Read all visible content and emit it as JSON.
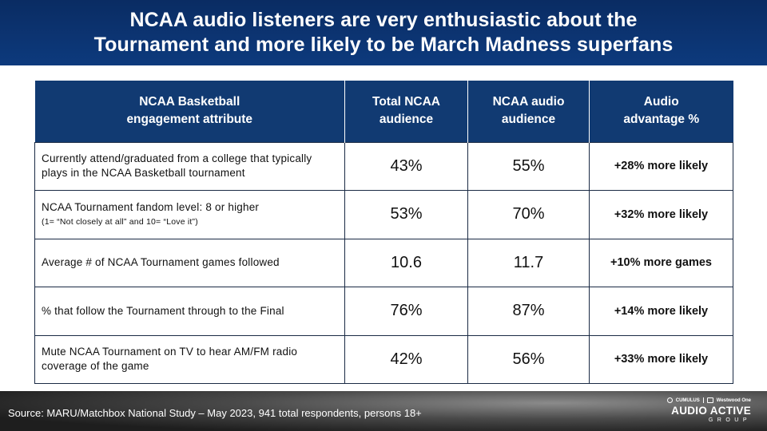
{
  "header": {
    "title": "NCAA audio listeners are very enthusiastic about the\nTournament and more likely to be March Madness superfans"
  },
  "table": {
    "headers": [
      "NCAA Basketball\nengagement attribute",
      "Total NCAA\naudience",
      "NCAA audio\naudience",
      "Audio\nadvantage %"
    ],
    "rows": [
      {
        "attribute": "Currently attend/graduated from a college that typically plays in the NCAA Basketball tournament",
        "note": "",
        "total": "43%",
        "audio": "55%",
        "advantage": "+28% more likely"
      },
      {
        "attribute": "NCAA Tournament fandom level: 8 or higher",
        "note": "(1= “Not closely at all” and 10= “Love it”)",
        "total": "53%",
        "audio": "70%",
        "advantage": "+32% more likely"
      },
      {
        "attribute": "Average # of NCAA Tournament games followed",
        "note": "",
        "total": "10.6",
        "audio": "11.7",
        "advantage": "+10% more games"
      },
      {
        "attribute": "% that follow the Tournament through to the Final",
        "note": "",
        "total": "76%",
        "audio": "87%",
        "advantage": "+14% more likely"
      },
      {
        "attribute": "Mute NCAA Tournament on TV to hear AM/FM radio coverage of the game",
        "note": "",
        "total": "42%",
        "audio": "56%",
        "advantage": "+33% more likely"
      }
    ]
  },
  "footer": {
    "source": "Source: MARU/Matchbox National Study – May 2023, 941 total respondents, persons 18+"
  },
  "logo": {
    "partner_left": "CUMULUS",
    "partner_right": "Westwood One",
    "brand": "AUDIO ACTIVE",
    "group": "GROUP",
    "icons": [
      "circle-icon",
      "westwood-one-icon"
    ]
  },
  "colors": {
    "header_bg": "#0d3a7d",
    "table_header_bg": "#113a72",
    "border": "#1a2a44",
    "footer_bg": "#3a3a3a"
  }
}
